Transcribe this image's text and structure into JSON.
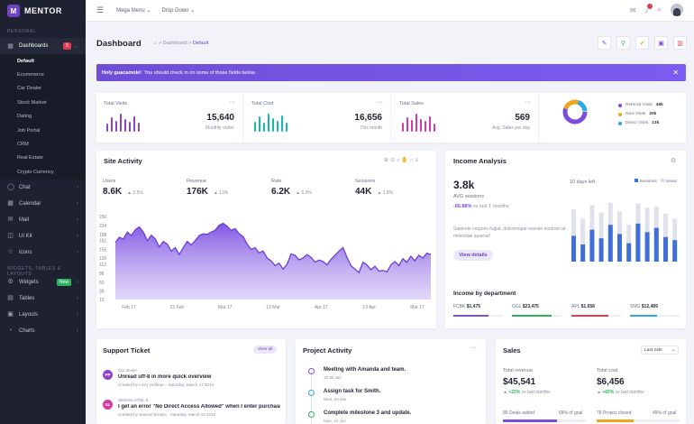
{
  "brand": {
    "name": "MENTOR",
    "logo": "M"
  },
  "sidebar": {
    "section_personal": "PERSONAL",
    "dashboards": {
      "label": "Dashboards",
      "badge": "5"
    },
    "sub_items": [
      "Default",
      "Ecommerce",
      "Car Dealer",
      "Stock Market",
      "Dating",
      "Job Portal",
      "CRM",
      "Real Estate",
      "Crypto Currency"
    ],
    "items": [
      {
        "label": "Chat",
        "icon": "chat-icon"
      },
      {
        "label": "Calendar",
        "icon": "calendar-icon"
      },
      {
        "label": "Mail",
        "icon": "mail-icon"
      },
      {
        "label": "UI Kit",
        "icon": "ui-kit-icon"
      },
      {
        "label": "Icons",
        "icon": "icons-icon"
      }
    ],
    "section_widgets": "WIDGETS, TABLES & LAYOUTS",
    "items2": [
      {
        "label": "Widgets",
        "icon": "widgets-icon",
        "badge": "New"
      },
      {
        "label": "Tables",
        "icon": "table-icon"
      },
      {
        "label": "Layouts",
        "icon": "layout-icon"
      },
      {
        "label": "Charts",
        "icon": "chart-icon"
      }
    ]
  },
  "topbar": {
    "mega_menu": "Mega Menu",
    "drop_down": "Drop Down"
  },
  "header": {
    "title": "Dashboard",
    "crumb_home": "Dashboard",
    "crumb_current": "Default"
  },
  "alert": {
    "bold": "Holy guacamole!",
    "text": "You should check in on some of those fields below."
  },
  "stats": [
    {
      "label": "Total Visits",
      "value": "15,640",
      "sub": "Monthly visitor",
      "color": "#8e44c8"
    },
    {
      "label": "Total Cost",
      "value": "16,656",
      "sub": "This month",
      "color": "#17b8a6"
    },
    {
      "label": "Total Sales",
      "value": "569",
      "sub": "Avg. Sales per day",
      "color": "#d63aa0"
    }
  ],
  "visits_legend": [
    {
      "label": "Referral Visits",
      "value": "45k",
      "color": "#7c4ddc"
    },
    {
      "label": "New Visits",
      "value": "20k",
      "color": "#f0a51c"
    },
    {
      "label": "Direct Visits",
      "value": "13k",
      "color": "#2ba8e8"
    }
  ],
  "site_activity": {
    "title": "Site Activity",
    "kpis": [
      {
        "label": "Users",
        "value": "8.6K",
        "change": "2.5%"
      },
      {
        "label": "Revenue",
        "value": "176K",
        "change": "13%"
      },
      {
        "label": "Rate",
        "value": "6.2K",
        "change": "6.5%"
      },
      {
        "label": "Sessions",
        "value": "44K",
        "change": "1.8%"
      }
    ]
  },
  "chart_data": {
    "type": "area",
    "title": "Site Activity",
    "x_ticks": [
      "Feb 17",
      "13 Feb",
      "Mar 17",
      "13 Mar",
      "Apr 17",
      "13 Apr",
      "Mar 17"
    ],
    "y_ticks": [
      250,
      224,
      198,
      181,
      155,
      130,
      112,
      86,
      60,
      35,
      10
    ],
    "ylim": [
      10,
      250
    ],
    "values": [
      175,
      190,
      185,
      205,
      195,
      212,
      220,
      205,
      180,
      196,
      185,
      162,
      178,
      170,
      150,
      160,
      140,
      160,
      178,
      168,
      180,
      195,
      200,
      198,
      205,
      210,
      225,
      230,
      222,
      210,
      215,
      200,
      192,
      170,
      155,
      160,
      145,
      150,
      130,
      122,
      108,
      115,
      98,
      112,
      142,
      138,
      125,
      130,
      140,
      132,
      118,
      124,
      120,
      110,
      126,
      138,
      150,
      160,
      132,
      108,
      98,
      88,
      118,
      110,
      96,
      106,
      92,
      94,
      90,
      110,
      120,
      108,
      128,
      118,
      135,
      122,
      138,
      130,
      144,
      140
    ]
  },
  "income": {
    "title": "Income Analysis",
    "value": "3.8k",
    "label": "AVG sessions",
    "change": "-65.88%",
    "change_text": "vs last 1 months",
    "days_left": "10 days left",
    "legend_sessions": "Sessions",
    "legend_views": "Views",
    "desc": "Sapiente corporis fugiat, doloremque eveniet nostrum at molestiae quaerat!",
    "button": "View details",
    "dept_title": "Income by department",
    "depts": [
      {
        "name": "FCBK",
        "value": "$1,475",
        "color": "#7c4ddc",
        "fill": 0.7
      },
      {
        "name": "GGL",
        "value": "$23,475",
        "color": "#2bb55e",
        "fill": 0.8
      },
      {
        "name": "APL",
        "value": "$1,658",
        "color": "#e23a4f",
        "fill": 0.75
      },
      {
        "name": "SMG",
        "value": "$12,489",
        "color": "#2ba8e8",
        "fill": 0.55
      }
    ]
  },
  "income_bars": {
    "sessions": [
      0.42,
      0.28,
      0.52,
      0.38,
      0.6,
      0.45,
      0.3,
      0.62,
      0.48,
      0.55,
      0.4,
      0.35
    ],
    "views": [
      0.85,
      0.7,
      0.92,
      0.8,
      0.96,
      0.82,
      0.6,
      0.95,
      0.88,
      0.9,
      0.78,
      0.7
    ]
  },
  "support": {
    "title": "Support Ticket",
    "view_all": "View all",
    "tickets": [
      {
        "initials": "PP",
        "tag": "Car dealer",
        "title": "Unread uff-8 in more quick overview",
        "meta": "Created by Lizzy Hoffman - Saturday, March 17 2019",
        "color": "#8e44c8"
      },
      {
        "initials": "SL",
        "tag": "Website HTML 5",
        "title": "I get an error \"No Direct Access Allowed\" when I enter purchase",
        "meta": "Created by Samuel Brooks - Saturday, March 18 2019",
        "color": "#d63aa0"
      }
    ]
  },
  "project": {
    "title": "Project Activity",
    "items": [
      {
        "title": "Meeting with Amanda and team.",
        "date": "10:30 Jan",
        "color": "#7c4ddc"
      },
      {
        "title": "Assign task for Smith.",
        "date": "Wed, 10 Mar",
        "color": "#2ba8e8"
      },
      {
        "title": "Complete milestone 3 and update.",
        "date": "Mon, 14 Jun",
        "color": "#2bb55e"
      }
    ]
  },
  "sales": {
    "title": "Sales",
    "period": "Last 24hr",
    "revenue_label": "Total revenue",
    "revenue": "$45,541",
    "revenue_change": "+23%",
    "revenue_change_text": "vs last months",
    "cost_label": "Total cost",
    "cost": "$6,456",
    "cost_change": "+65%",
    "cost_change_text": "vs last months",
    "deals": "86 Deals added",
    "deals_goal": "65% of goal",
    "projects": "78 Project closed",
    "projects_goal": "45% of goal"
  }
}
